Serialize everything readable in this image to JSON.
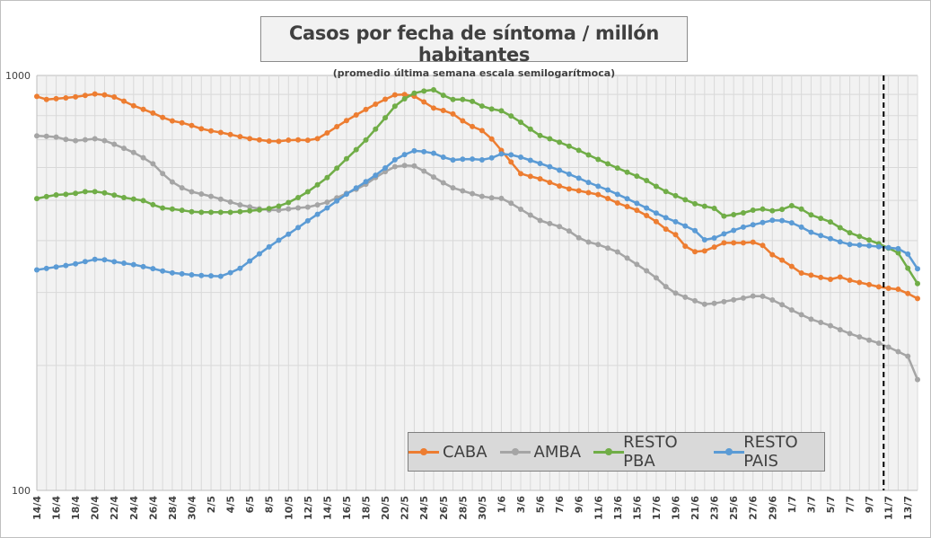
{
  "chart_data": {
    "type": "line",
    "title": "Casos por fecha de síntoma / millón habitantes",
    "subtitle": "(promedio última semana escala semilogarítmoca)",
    "y_scale": "log",
    "ylim": [
      100,
      1000
    ],
    "y_ticks": [
      "1000",
      "100"
    ],
    "x_tick_labels": [
      "14/4",
      "16/4",
      "18/4",
      "20/4",
      "22/4",
      "24/4",
      "26/4",
      "28/4",
      "30/4",
      "2/5",
      "4/5",
      "6/5",
      "8/5",
      "10/5",
      "12/5",
      "14/5",
      "16/5",
      "18/5",
      "20/5",
      "22/5",
      "24/5",
      "26/5",
      "28/5",
      "30/5",
      "1/6",
      "3/6",
      "5/6",
      "7/6",
      "9/6",
      "11/6",
      "13/6",
      "15/6",
      "17/6",
      "19/6",
      "21/6",
      "23/6",
      "25/6",
      "27/6",
      "29/6",
      "1/7",
      "3/7",
      "5/7",
      "7/7",
      "9/7",
      "11/7",
      "13/7"
    ],
    "x_start": "14/4",
    "n_points": 92,
    "marker_line_after_index": 87,
    "legend_position": "bottom-right",
    "series": [
      {
        "name": "CABA",
        "color": "#ed7d31",
        "anchors": [
          [
            0,
            890
          ],
          [
            1,
            875
          ],
          [
            4,
            885
          ],
          [
            7,
            905
          ],
          [
            9,
            885
          ],
          [
            11,
            845
          ],
          [
            13,
            815
          ],
          [
            15,
            780
          ],
          [
            17,
            765
          ],
          [
            19,
            740
          ],
          [
            21,
            728
          ],
          [
            24,
            705
          ],
          [
            27,
            692
          ],
          [
            29,
            700
          ],
          [
            31,
            698
          ],
          [
            32,
            705
          ],
          [
            35,
            775
          ],
          [
            37,
            820
          ],
          [
            39,
            865
          ],
          [
            41,
            905
          ],
          [
            43,
            890
          ],
          [
            45,
            835
          ],
          [
            47,
            815
          ],
          [
            49,
            760
          ],
          [
            51,
            730
          ],
          [
            53,
            650
          ],
          [
            55,
            578
          ],
          [
            57,
            565
          ],
          [
            60,
            535
          ],
          [
            62,
            525
          ],
          [
            64,
            515
          ],
          [
            66,
            492
          ],
          [
            68,
            475
          ],
          [
            70,
            450
          ],
          [
            72,
            417
          ],
          [
            73,
            410
          ],
          [
            74,
            375
          ],
          [
            76,
            378
          ],
          [
            78,
            395
          ],
          [
            81,
            395
          ],
          [
            82,
            400
          ],
          [
            83,
            375
          ],
          [
            85,
            355
          ],
          [
            87,
            332
          ],
          [
            88,
            330
          ],
          [
            90,
            322
          ],
          [
            91,
            328
          ],
          [
            92,
            322
          ],
          [
            94,
            315
          ],
          [
            96,
            308
          ],
          [
            98,
            305
          ],
          [
            100,
            290
          ]
        ]
      },
      {
        "name": "AMBA",
        "color": "#a5a5a5",
        "anchors": [
          [
            0,
            715
          ],
          [
            2,
            712
          ],
          [
            4,
            695
          ],
          [
            7,
            705
          ],
          [
            9,
            680
          ],
          [
            11,
            652
          ],
          [
            13,
            618
          ],
          [
            15,
            560
          ],
          [
            17,
            528
          ],
          [
            20,
            510
          ],
          [
            23,
            488
          ],
          [
            25,
            478
          ],
          [
            27,
            472
          ],
          [
            29,
            478
          ],
          [
            31,
            482
          ],
          [
            33,
            495
          ],
          [
            35,
            518
          ],
          [
            37,
            540
          ],
          [
            39,
            578
          ],
          [
            41,
            608
          ],
          [
            43,
            605
          ],
          [
            45,
            570
          ],
          [
            47,
            538
          ],
          [
            49,
            522
          ],
          [
            51,
            508
          ],
          [
            53,
            505
          ],
          [
            55,
            475
          ],
          [
            57,
            448
          ],
          [
            60,
            428
          ],
          [
            62,
            400
          ],
          [
            64,
            390
          ],
          [
            66,
            375
          ],
          [
            68,
            352
          ],
          [
            70,
            330
          ],
          [
            72,
            302
          ],
          [
            74,
            290
          ],
          [
            76,
            280
          ],
          [
            78,
            285
          ],
          [
            80,
            290
          ],
          [
            82,
            296
          ],
          [
            84,
            285
          ],
          [
            86,
            270
          ],
          [
            88,
            258
          ],
          [
            90,
            250
          ],
          [
            92,
            240
          ],
          [
            94,
            232
          ],
          [
            96,
            225
          ],
          [
            98,
            215
          ],
          [
            99,
            210
          ],
          [
            100,
            185
          ]
        ]
      },
      {
        "name": "RESTO PBA",
        "color": "#70ad47",
        "anchors": [
          [
            0,
            505
          ],
          [
            2,
            515
          ],
          [
            4,
            518
          ],
          [
            6,
            527
          ],
          [
            8,
            520
          ],
          [
            10,
            507
          ],
          [
            12,
            500
          ],
          [
            14,
            480
          ],
          [
            16,
            475
          ],
          [
            18,
            468
          ],
          [
            22,
            468
          ],
          [
            25,
            473
          ],
          [
            27,
            480
          ],
          [
            29,
            498
          ],
          [
            31,
            528
          ],
          [
            33,
            568
          ],
          [
            35,
            625
          ],
          [
            37,
            685
          ],
          [
            39,
            765
          ],
          [
            41,
            860
          ],
          [
            43,
            910
          ],
          [
            45,
            925
          ],
          [
            47,
            875
          ],
          [
            49,
            875
          ],
          [
            51,
            835
          ],
          [
            53,
            820
          ],
          [
            55,
            770
          ],
          [
            57,
            718
          ],
          [
            59,
            695
          ],
          [
            61,
            668
          ],
          [
            63,
            638
          ],
          [
            65,
            610
          ],
          [
            67,
            585
          ],
          [
            69,
            562
          ],
          [
            71,
            530
          ],
          [
            73,
            508
          ],
          [
            75,
            488
          ],
          [
            77,
            478
          ],
          [
            78,
            458
          ],
          [
            80,
            465
          ],
          [
            82,
            478
          ],
          [
            84,
            470
          ],
          [
            86,
            488
          ],
          [
            88,
            460
          ],
          [
            90,
            445
          ],
          [
            92,
            420
          ],
          [
            94,
            405
          ],
          [
            96,
            390
          ],
          [
            98,
            372
          ],
          [
            99,
            340
          ],
          [
            100,
            315
          ]
        ]
      },
      {
        "name": "RESTO PAIS",
        "color": "#5b9bd5",
        "anchors": [
          [
            0,
            340
          ],
          [
            2,
            345
          ],
          [
            4,
            350
          ],
          [
            6,
            358
          ],
          [
            7,
            362
          ],
          [
            9,
            355
          ],
          [
            11,
            350
          ],
          [
            13,
            343
          ],
          [
            15,
            335
          ],
          [
            18,
            330
          ],
          [
            21,
            328
          ],
          [
            23,
            342
          ],
          [
            25,
            368
          ],
          [
            27,
            395
          ],
          [
            29,
            420
          ],
          [
            31,
            450
          ],
          [
            33,
            480
          ],
          [
            35,
            515
          ],
          [
            37,
            548
          ],
          [
            39,
            585
          ],
          [
            41,
            635
          ],
          [
            43,
            660
          ],
          [
            45,
            650
          ],
          [
            47,
            625
          ],
          [
            49,
            630
          ],
          [
            51,
            625
          ],
          [
            53,
            650
          ],
          [
            55,
            635
          ],
          [
            57,
            615
          ],
          [
            59,
            595
          ],
          [
            61,
            572
          ],
          [
            63,
            548
          ],
          [
            65,
            528
          ],
          [
            67,
            505
          ],
          [
            69,
            482
          ],
          [
            71,
            458
          ],
          [
            73,
            440
          ],
          [
            75,
            420
          ],
          [
            76,
            398
          ],
          [
            78,
            415
          ],
          [
            80,
            430
          ],
          [
            82,
            440
          ],
          [
            84,
            450
          ],
          [
            86,
            440
          ],
          [
            88,
            418
          ],
          [
            90,
            405
          ],
          [
            92,
            392
          ],
          [
            95,
            388
          ],
          [
            98,
            382
          ],
          [
            99,
            370
          ],
          [
            100,
            342
          ]
        ]
      }
    ]
  }
}
